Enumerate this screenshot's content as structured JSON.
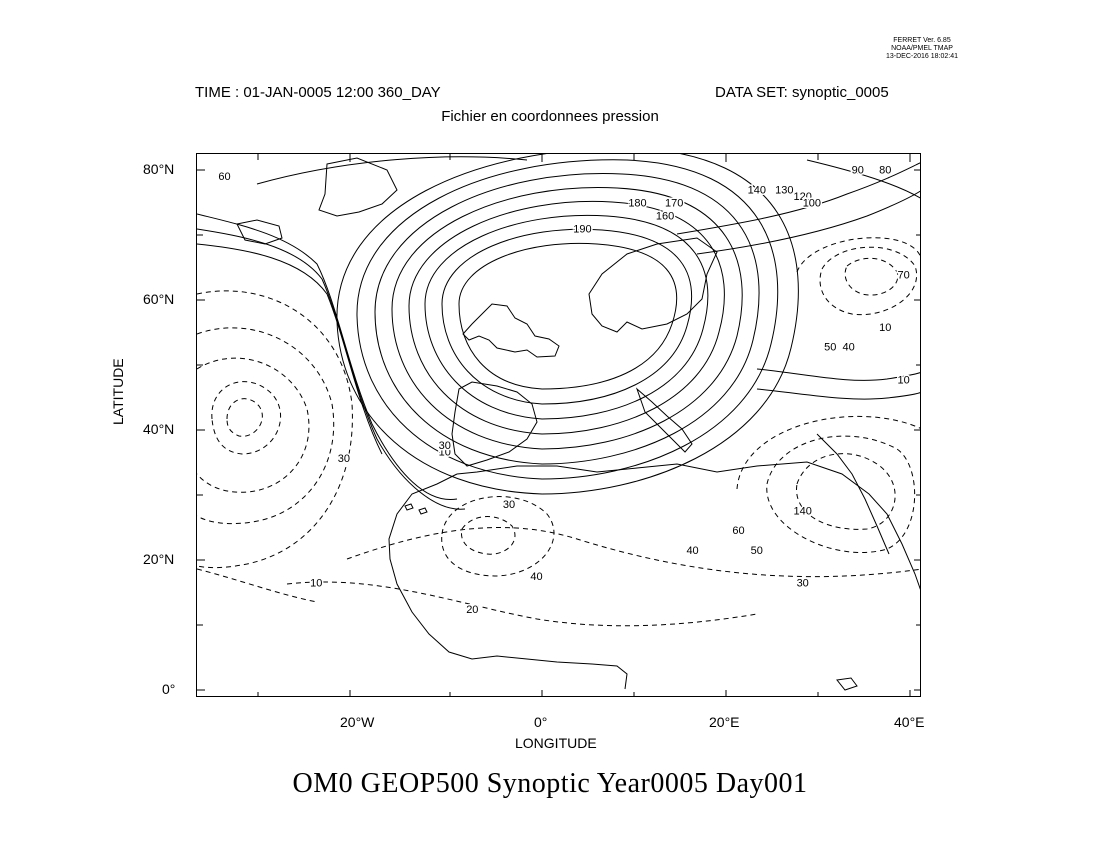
{
  "stamp": [
    "FERRET Ver. 6.85",
    "NOAA/PMEL TMAP",
    "13-DEC-2016 18:02:41"
  ],
  "header": {
    "time": "TIME : 01-JAN-0005 12:00 360_DAY",
    "dataset": "DATA SET: synoptic_0005",
    "subtitle": "Fichier en coordonnees pression"
  },
  "axes": {
    "x_title": "LONGITUDE",
    "y_title": "LATITUDE",
    "x_ticks": [
      "20°W",
      "0°",
      "20°E",
      "40°E"
    ],
    "y_ticks": [
      "80°N",
      "60°N",
      "40°N",
      "20°N",
      "0°"
    ]
  },
  "footer_title": "OM0 GEOP500 Synoptic Year0005 Day001",
  "chart_data": {
    "type": "contour-map",
    "xlim": [
      -38,
      41
    ],
    "ylim": [
      -1,
      82
    ],
    "contour_labels": [
      {
        "text": "60",
        "lon": -35,
        "lat": 78
      },
      {
        "text": "90",
        "lon": 34,
        "lat": 79
      },
      {
        "text": "80",
        "lon": 37,
        "lat": 79
      },
      {
        "text": "140",
        "lon": 23,
        "lat": 76
      },
      {
        "text": "130",
        "lon": 26,
        "lat": 76
      },
      {
        "text": "120",
        "lon": 28,
        "lat": 75
      },
      {
        "text": "100",
        "lon": 29,
        "lat": 74
      },
      {
        "text": "180",
        "lon": 10,
        "lat": 74
      },
      {
        "text": "170",
        "lon": 14,
        "lat": 74
      },
      {
        "text": "160",
        "lon": 13,
        "lat": 72
      },
      {
        "text": "190",
        "lon": 4,
        "lat": 70
      },
      {
        "text": "70",
        "lon": 39,
        "lat": 63
      },
      {
        "text": "10",
        "lon": 37,
        "lat": 55
      },
      {
        "text": "50",
        "lon": 31,
        "lat": 52
      },
      {
        "text": "40",
        "lon": 33,
        "lat": 52
      },
      {
        "text": "10",
        "lon": 39,
        "lat": 47
      },
      {
        "text": "10",
        "lon": -11,
        "lat": 36
      },
      {
        "text": "30",
        "lon": -11,
        "lat": 37
      },
      {
        "text": "30",
        "lon": -22,
        "lat": 35
      },
      {
        "text": "30",
        "lon": -4,
        "lat": 28
      },
      {
        "text": "140",
        "lon": 28,
        "lat": 27
      },
      {
        "text": "60",
        "lon": 21,
        "lat": 24
      },
      {
        "text": "50",
        "lon": 23,
        "lat": 21
      },
      {
        "text": "40",
        "lon": 16,
        "lat": 21
      },
      {
        "text": "40",
        "lon": -1,
        "lat": 17
      },
      {
        "text": "30",
        "lon": 28,
        "lat": 16
      },
      {
        "text": "10",
        "lon": -25,
        "lat": 16
      },
      {
        "text": "20",
        "lon": -8,
        "lat": 12
      }
    ]
  },
  "colors": {
    "line": "#000000",
    "background": "#ffffff"
  }
}
